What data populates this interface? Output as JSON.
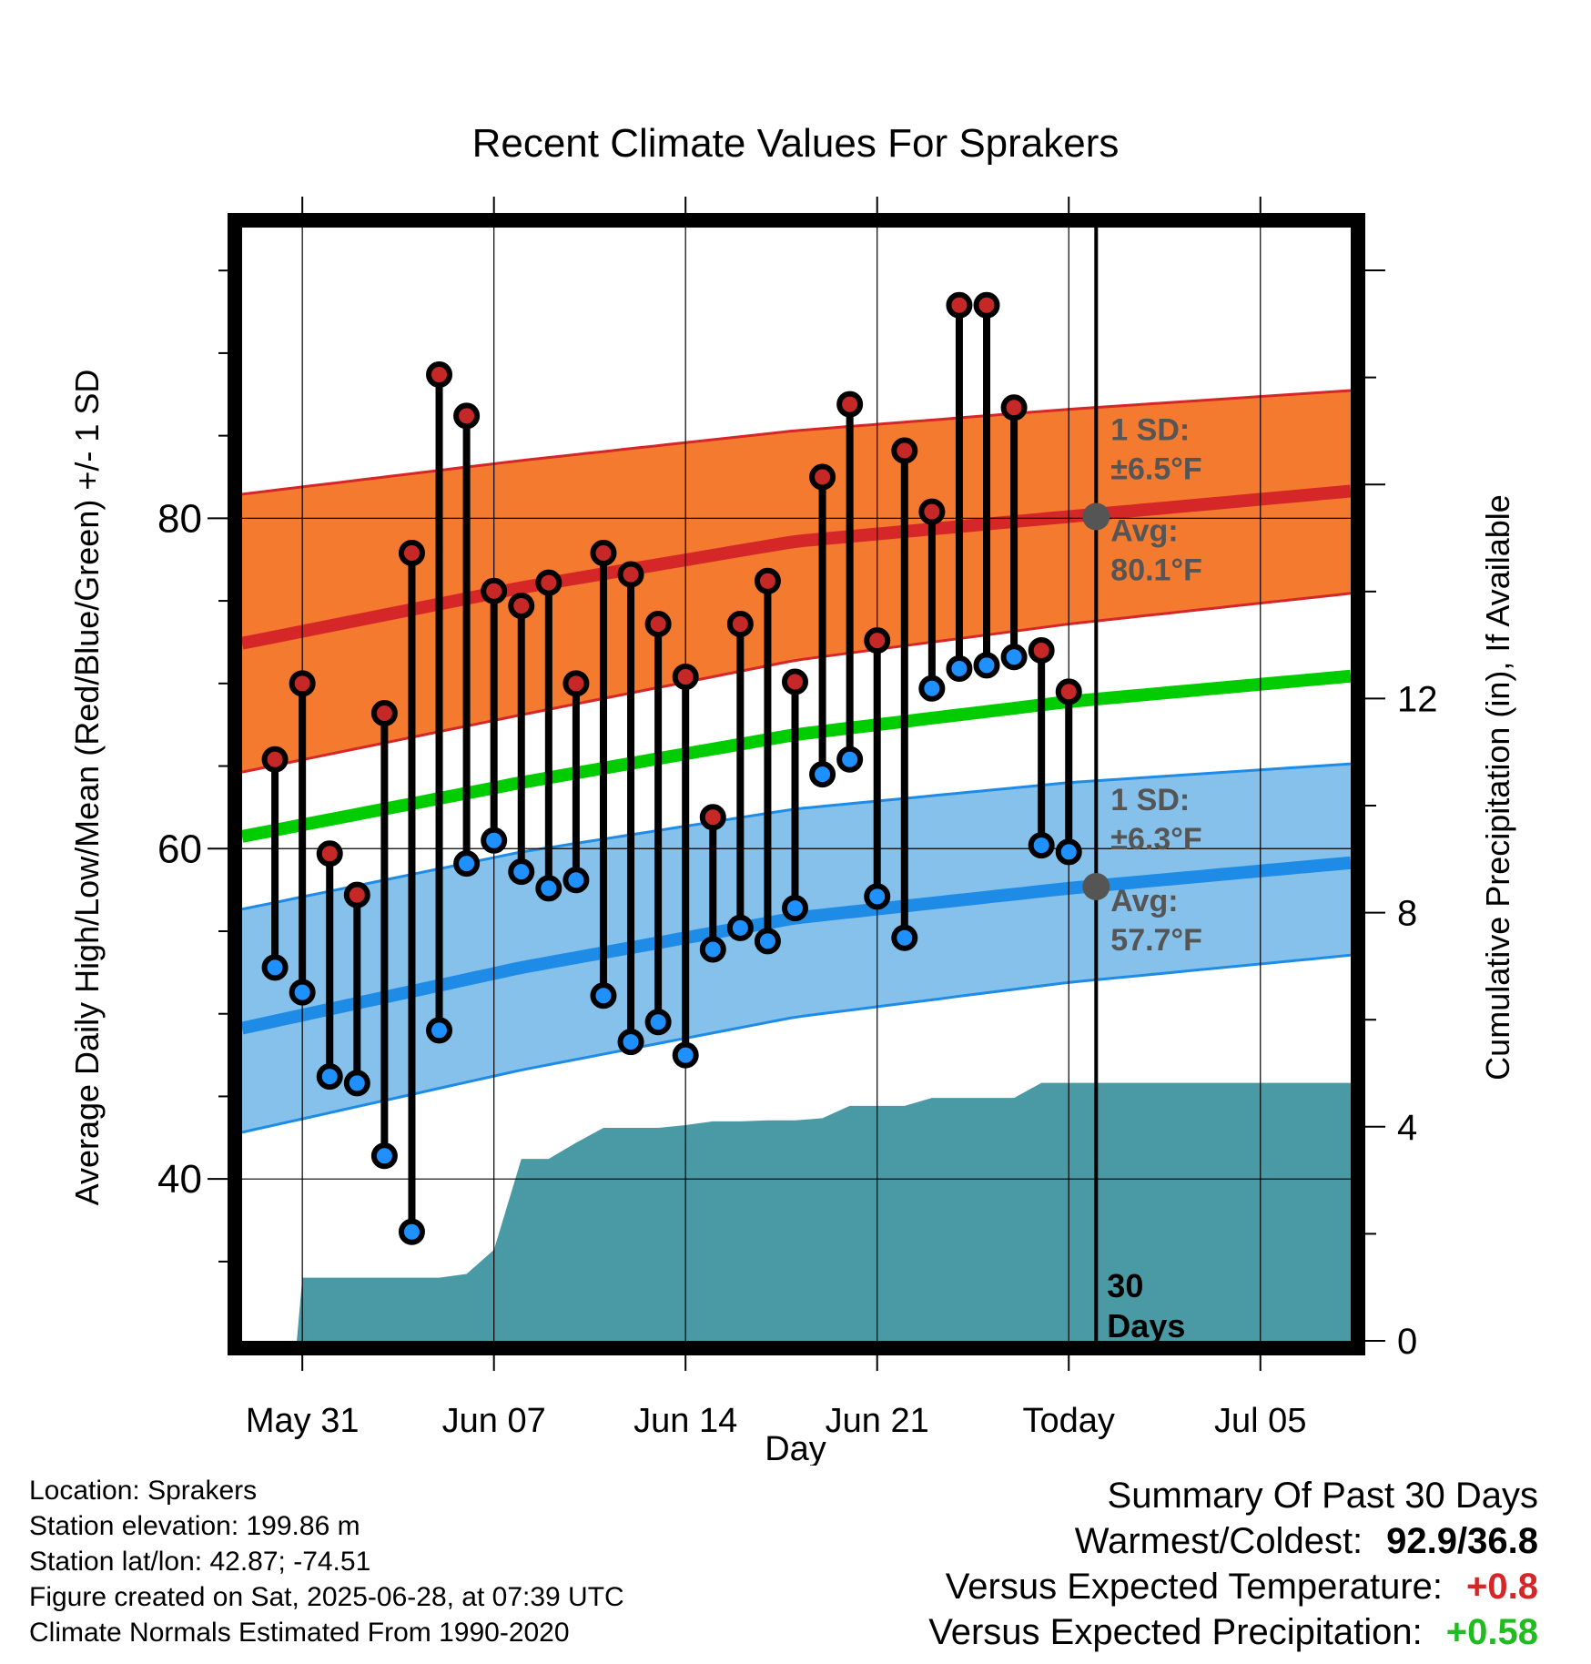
{
  "chart_data": {
    "type": "line",
    "title": "Recent Climate Values For Sprakers",
    "xlabel": "Day",
    "ylabel": "Average Daily High/Low/Mean (Red/Blue/Green) +/- 1 SD",
    "y2label": "Cumulative Precipitation (in), If Available",
    "x_tick_labels": [
      "May 31",
      "Jun 07",
      "Jun 14",
      "Jun 21",
      "Today",
      "Jul 05"
    ],
    "y_ticks": [
      "40",
      "60",
      "80"
    ],
    "y2_ticks": [
      "0",
      "4",
      "8",
      "12"
    ],
    "ylim": [
      30.2,
      97.6
    ],
    "y2lim": [
      0,
      20.8
    ],
    "x_range_days": [
      -31.2,
      9.3
    ],
    "today_label": "30 Days",
    "colors": {
      "high_band": "#f47a30",
      "high_line": "#d62728",
      "mean_line": "#00cc00",
      "low_band": "#85c1ea",
      "low_line": "#1e8ce6",
      "precip": "#4a9aa5",
      "high_dot": "#c62828",
      "low_dot": "#1e90ff",
      "today_dot": "#555555"
    },
    "normals": {
      "day": [
        -31,
        -21,
        -11,
        -1,
        9
      ],
      "high_avg": [
        72.5,
        75.8,
        78.6,
        80.1,
        81.6
      ],
      "high_sd_upper": [
        81.5,
        83.5,
        85.3,
        86.6,
        87.7
      ],
      "high_sd_lower": [
        64.7,
        68.1,
        71.4,
        73.6,
        75.4
      ],
      "mean": [
        60.8,
        64.0,
        66.9,
        68.9,
        70.4
      ],
      "low_avg": [
        49.2,
        52.8,
        55.8,
        57.6,
        59.1
      ],
      "low_sd_upper": [
        56.4,
        59.8,
        62.4,
        64.0,
        65.1
      ],
      "low_sd_lower": [
        42.9,
        46.6,
        49.8,
        51.9,
        53.5
      ]
    },
    "high_annotation": {
      "sd": "1 SD:",
      "sd_value": "±6.5°F",
      "avg": "Avg:",
      "avg_value": "80.1°F",
      "avg_y": 80.1
    },
    "low_annotation": {
      "sd": "1 SD:",
      "sd_value": "±6.3°F",
      "avg": "Avg:",
      "avg_value": "57.7°F",
      "avg_y": 57.7
    },
    "daily": [
      {
        "day": -30,
        "high": 65.4,
        "low": 52.8
      },
      {
        "day": -29,
        "high": 70.0,
        "low": 51.3
      },
      {
        "day": -28,
        "high": 59.7,
        "low": 46.2
      },
      {
        "day": -27,
        "high": 57.2,
        "low": 45.8
      },
      {
        "day": -26,
        "high": 68.2,
        "low": 41.4
      },
      {
        "day": -25,
        "high": 77.9,
        "low": 36.8
      },
      {
        "day": -24,
        "high": 88.7,
        "low": 49.0
      },
      {
        "day": -23,
        "high": 86.2,
        "low": 59.1
      },
      {
        "day": -22,
        "high": 75.6,
        "low": 60.5
      },
      {
        "day": -21,
        "high": 74.7,
        "low": 58.6
      },
      {
        "day": -20,
        "high": 76.1,
        "low": 57.6
      },
      {
        "day": -19,
        "high": 70.0,
        "low": 58.1
      },
      {
        "day": -18,
        "high": 77.9,
        "low": 51.1
      },
      {
        "day": -17,
        "high": 76.6,
        "low": 48.3
      },
      {
        "day": -16,
        "high": 73.6,
        "low": 49.5
      },
      {
        "day": -15,
        "high": 70.4,
        "low": 47.5
      },
      {
        "day": -14,
        "high": 61.9,
        "low": 53.9
      },
      {
        "day": -13,
        "high": 73.6,
        "low": 55.2
      },
      {
        "day": -12,
        "high": 76.2,
        "low": 54.4
      },
      {
        "day": -11,
        "high": 70.1,
        "low": 56.4
      },
      {
        "day": -10,
        "high": 82.5,
        "low": 64.5
      },
      {
        "day": -9,
        "high": 86.9,
        "low": 65.4
      },
      {
        "day": -8,
        "high": 72.6,
        "low": 57.1
      },
      {
        "day": -7,
        "high": 84.1,
        "low": 54.6
      },
      {
        "day": -6,
        "high": 80.4,
        "low": 69.7
      },
      {
        "day": -5,
        "high": 92.9,
        "low": 70.9
      },
      {
        "day": -4,
        "high": 92.9,
        "low": 71.1
      },
      {
        "day": -3,
        "high": 86.7,
        "low": 71.6
      },
      {
        "day": -2,
        "high": 72.0,
        "low": 60.2
      },
      {
        "day": -1,
        "high": 69.5,
        "low": 59.8
      }
    ],
    "precip_cumulative": {
      "day": [
        -31.2,
        -29.2,
        -29.0,
        -25.0,
        -24.0,
        -23.0,
        -22.0,
        -21.0,
        -20.0,
        -19.0,
        -18.0,
        -17.0,
        -16.0,
        -15.0,
        -14.0,
        -13.0,
        -12.0,
        -11.0,
        -10.0,
        -9.0,
        -8.0,
        -7.0,
        -6.0,
        -5.0,
        -4.0,
        -3.0,
        -2.0,
        9.3
      ],
      "value": [
        0,
        0,
        1.18,
        1.18,
        1.18,
        1.25,
        1.7,
        3.4,
        3.4,
        3.7,
        3.98,
        3.98,
        3.98,
        4.03,
        4.1,
        4.1,
        4.12,
        4.12,
        4.16,
        4.39,
        4.39,
        4.39,
        4.54,
        4.54,
        4.54,
        4.54,
        4.82,
        4.82
      ]
    }
  },
  "info": {
    "location": "Location: Sprakers",
    "elevation": "Station elevation: 199.86 m",
    "latlon": "Station lat/lon: 42.87; -74.51",
    "created": "Figure created on Sat, 2025-06-28, at 07:39 UTC",
    "normals": "Climate Normals Estimated From 1990-2020"
  },
  "summary": {
    "heading": "Summary Of Past 30 Days",
    "warm_cold_label": "Warmest/Coldest:",
    "warm_cold_value": "92.9/36.8",
    "temp_label": "Versus Expected Temperature:",
    "temp_value": "+0.8",
    "precip_label": "Versus Expected Precipitation:",
    "precip_value": "+0.58"
  }
}
